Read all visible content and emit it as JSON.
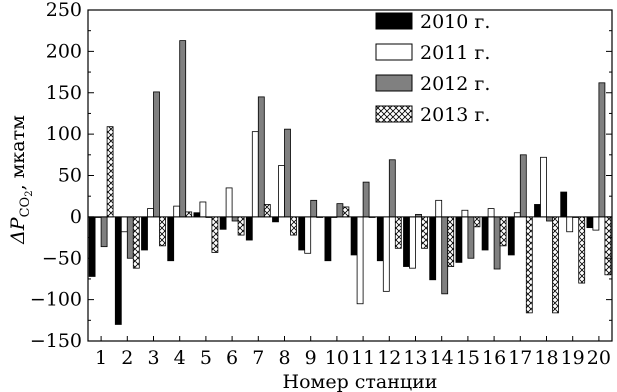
{
  "chart_data": {
    "type": "bar",
    "xlabel": "Номер станции",
    "ylabel_symbol": "ΔP",
    "ylabel_subscript": "CO",
    "ylabel_subscript2": "2",
    "ylabel_unit": ", мкатм",
    "ylim": [
      -150,
      250
    ],
    "yticks": [
      -150,
      -100,
      -50,
      0,
      50,
      100,
      150,
      200,
      250
    ],
    "categories": [
      "1",
      "2",
      "3",
      "4",
      "5",
      "6",
      "7",
      "8",
      "9",
      "10",
      "11",
      "12",
      "13",
      "14",
      "15",
      "16",
      "17",
      "18",
      "19",
      "20"
    ],
    "legend_position": "top-right",
    "series": [
      {
        "name": "2010 г.",
        "fill": "#000000",
        "pattern": "solid",
        "values": [
          -72,
          -130,
          -40,
          -53,
          5,
          -15,
          -28,
          -6,
          -40,
          -53,
          -46,
          -53,
          -60,
          -76,
          -55,
          -40,
          -46,
          15,
          30,
          -13
        ]
      },
      {
        "name": "2011 г.",
        "fill": "#ffffff",
        "pattern": "solid",
        "values": [
          0,
          -18,
          10,
          13,
          18,
          35,
          103,
          62,
          -44,
          0,
          -105,
          -90,
          -62,
          20,
          8,
          10,
          5,
          72,
          -18,
          -16
        ]
      },
      {
        "name": "2012 г.",
        "fill": "#808080",
        "pattern": "solid",
        "values": [
          -36,
          -50,
          151,
          213,
          0,
          -5,
          145,
          106,
          20,
          16,
          42,
          69,
          3,
          -93,
          -50,
          -63,
          75,
          -5,
          0,
          162
        ]
      },
      {
        "name": "2013 г.",
        "fill": "#ffffff",
        "pattern": "crosshatch",
        "values": [
          109,
          -62,
          -35,
          6,
          -43,
          -22,
          15,
          -22,
          0,
          12,
          0,
          -38,
          -38,
          -60,
          -12,
          -35,
          -116,
          -116,
          -80,
          -70
        ]
      }
    ]
  }
}
